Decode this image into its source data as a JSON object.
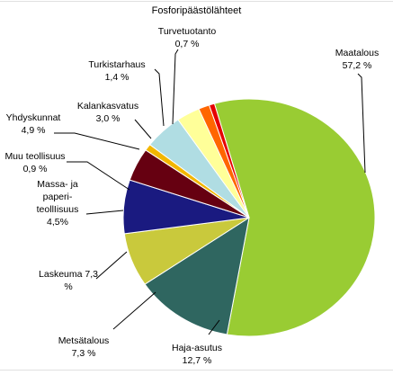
{
  "chart_data": {
    "type": "pie",
    "title": "Fosforipäästölähteet",
    "slices": [
      {
        "lines": [
          "Maatalous",
          "57,2 %"
        ],
        "value": 57.2,
        "color": "#99cc33"
      },
      {
        "lines": [
          "Haja-asutus",
          "12,7 %"
        ],
        "value": 12.7,
        "color": "#2f6660"
      },
      {
        "lines": [
          "Metsätalous",
          "7,3 %"
        ],
        "value": 7.3,
        "color": "#c9c93c"
      },
      {
        "lines": [
          "Laskeuma 7,3",
          "%"
        ],
        "value": 7.3,
        "color": "#1a1a80"
      },
      {
        "lines": [
          "Massa- ja",
          "paperi-",
          "teollIisuus",
          "4,5%"
        ],
        "value": 4.5,
        "color": "#660011"
      },
      {
        "lines": [
          "Muu teollisuus",
          "0,9 %"
        ],
        "value": 0.9,
        "color": "#f2b600"
      },
      {
        "lines": [
          "Yhdyskunnat",
          "4,9 %"
        ],
        "value": 4.9,
        "color": "#b0dde3"
      },
      {
        "lines": [
          "Kalankasvatus",
          "3,0 %"
        ],
        "value": 3.0,
        "color": "#ffff99"
      },
      {
        "lines": [
          "Turkistarhaus",
          "1,4 %"
        ],
        "value": 1.4,
        "color": "#ff6600"
      },
      {
        "lines": [
          "Turvetuotanto",
          "0,7 %"
        ],
        "value": 0.7,
        "color": "#e60000"
      }
    ]
  }
}
